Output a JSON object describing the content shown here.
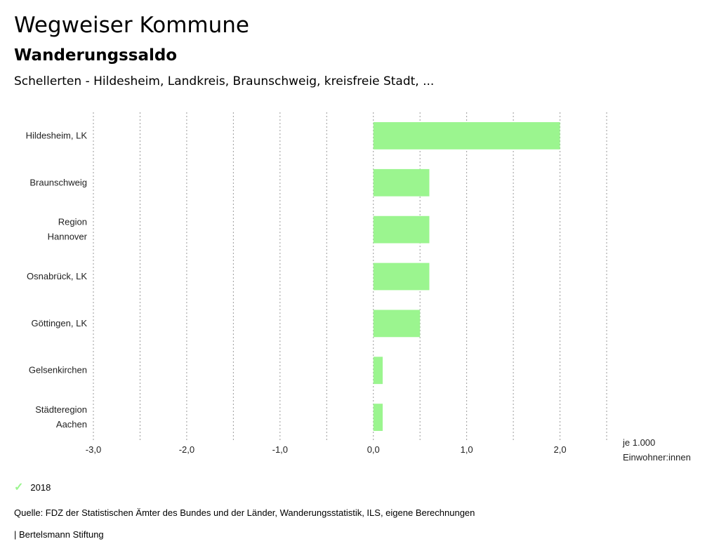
{
  "header": {
    "title": "Wegweiser Kommune",
    "subtitle": "Wanderungssaldo",
    "region": "Schellerten - Hildesheim, Landkreis, Braunschweig, kreisfreie Stadt, ..."
  },
  "chart_data": {
    "type": "bar",
    "orientation": "horizontal",
    "categories": [
      [
        "Hildesheim, LK"
      ],
      [
        "Braunschweig"
      ],
      [
        "Region",
        "Hannover"
      ],
      [
        "Osnabrück, LK"
      ],
      [
        "Göttingen, LK"
      ],
      [
        "Gelsenkirchen"
      ],
      [
        "Städteregion",
        "Aachen"
      ]
    ],
    "series": [
      {
        "name": "2018",
        "values": [
          2.0,
          0.6,
          0.6,
          0.6,
          0.5,
          0.1,
          0.1
        ]
      }
    ],
    "xlim": [
      -3.0,
      2.5
    ],
    "xticks": [
      -3.0,
      -2.0,
      -1.0,
      0.0,
      1.0,
      2.0
    ],
    "xtick_labels": [
      "-3,0",
      "-2,0",
      "-1,0",
      "0,0",
      "1,0",
      "2,0"
    ],
    "gridlines_at": [
      -3.0,
      -2.5,
      -2.0,
      -1.5,
      -1.0,
      -0.5,
      0.0,
      0.5,
      1.0,
      1.5,
      2.0,
      2.5
    ],
    "unit_label": [
      "je 1.000",
      "Einwohner:innen"
    ],
    "bar_color": "#9bf58f",
    "grid": true
  },
  "legend": {
    "label": "2018",
    "color": "#9bf58f"
  },
  "footer": {
    "source": "Quelle: FDZ der Statistischen Ämter des Bundes und der Länder, Wanderungsstatistik, ILS, eigene Berechnungen",
    "brand": "| Bertelsmann Stiftung"
  }
}
